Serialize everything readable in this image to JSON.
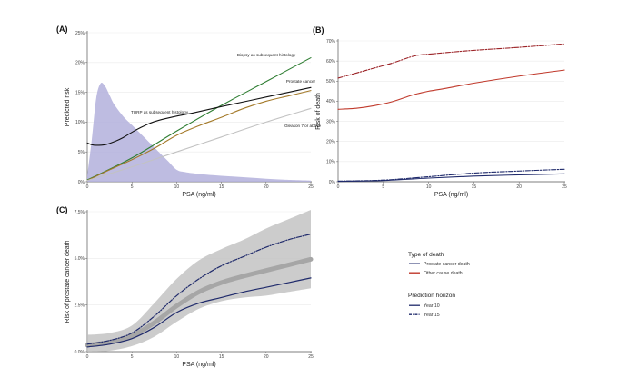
{
  "chart_data": [
    {
      "panel": "(A)",
      "type": "line",
      "xlabel": "PSA (ng/ml)",
      "ylabel": "Predicted risk",
      "xlim": [
        0,
        25
      ],
      "ylim": [
        0,
        25
      ],
      "xticks": [
        "0",
        "5",
        "10",
        "15",
        "20",
        "25"
      ],
      "yticks": [
        "0%",
        "5%",
        "10%",
        "15%",
        "20%",
        "25%"
      ],
      "density": {
        "name": "PSA distribution",
        "color": "#b3b0dc",
        "x": [
          0,
          0.5,
          1,
          1.5,
          2,
          2.5,
          3,
          4,
          5,
          6,
          7,
          8,
          9,
          10,
          11,
          12,
          14,
          16,
          18,
          20,
          22,
          25
        ],
        "y": [
          1.0,
          7,
          14,
          16.5,
          16,
          14.5,
          13,
          11,
          9.5,
          8,
          6.5,
          5,
          3.5,
          2,
          1.6,
          1.4,
          1.1,
          0.9,
          0.7,
          0.5,
          0.35,
          0.2
        ]
      },
      "series": [
        {
          "name": "Biopsy as subsequent histology",
          "color": "#2e7d32",
          "x": [
            0,
            5,
            10,
            15,
            20,
            25
          ],
          "y": [
            0.3,
            4,
            8.5,
            12.8,
            16.8,
            20.8
          ]
        },
        {
          "name": "Prostate cancer",
          "color": "#a47a2a",
          "x": [
            0,
            2.5,
            5,
            7.5,
            10,
            12.5,
            15,
            17.5,
            20,
            22.5,
            25
          ],
          "y": [
            0.2,
            2,
            3.7,
            5.6,
            7.8,
            9.4,
            10.8,
            12.3,
            13.5,
            14.4,
            15.3
          ]
        },
        {
          "name": "TURP as subsequent histology",
          "color": "#111111",
          "x": [
            0,
            0.5,
            1,
            2,
            3,
            4,
            5,
            6,
            7,
            8,
            10,
            12,
            15,
            20,
            25
          ],
          "y": [
            6.5,
            6.2,
            6.1,
            6.2,
            6.7,
            7.4,
            8.3,
            9.1,
            9.8,
            10.3,
            11.0,
            11.6,
            12.6,
            14.2,
            15.8
          ]
        },
        {
          "name": "Gleason 7 or above",
          "color": "#c2c2c2",
          "x": [
            0,
            5,
            10,
            15,
            20,
            25
          ],
          "y": [
            0.2,
            2.5,
            5,
            7.5,
            10,
            12.3
          ]
        }
      ],
      "annotations": [
        {
          "text": "Biopsy as subsequent histology",
          "series": 0
        },
        {
          "text": "Prostate cancer",
          "series": 1
        },
        {
          "text": "TURP as subsequent histology",
          "series": 2
        },
        {
          "text": "Gleason 7 or above",
          "series": 3
        }
      ]
    },
    {
      "panel": "(B)",
      "type": "line",
      "xlabel": "PSA (ng/ml)",
      "ylabel": "Risk of death",
      "xlim": [
        0,
        25
      ],
      "ylim": [
        0,
        70
      ],
      "xticks": [
        "0",
        "5",
        "10",
        "15",
        "20",
        "25"
      ],
      "yticks": [
        "0%",
        "10%",
        "20%",
        "30%",
        "40%",
        "50%",
        "60%",
        "70%"
      ],
      "series": [
        {
          "name": "Other cause death, Year 15",
          "color": "#9b2226",
          "dash": true,
          "x": [
            0,
            2,
            4,
            6,
            8,
            9,
            10,
            12,
            15,
            20,
            25
          ],
          "y": [
            51.5,
            54,
            56.5,
            59,
            62,
            63,
            63.4,
            64.2,
            65.3,
            66.8,
            68.5
          ]
        },
        {
          "name": "Other cause death, Year 10",
          "color": "#c0392b",
          "dash": false,
          "x": [
            0,
            2,
            4,
            6,
            8,
            9,
            10,
            12,
            15,
            20,
            25
          ],
          "y": [
            36,
            36.5,
            37.8,
            39.8,
            42.8,
            44,
            45,
            46.5,
            49,
            52.5,
            55.5
          ]
        },
        {
          "name": "Prostate cancer death, Year 15",
          "color": "#1f2a6b",
          "dash": true,
          "x": [
            0,
            5,
            10,
            15,
            20,
            25
          ],
          "y": [
            0.3,
            0.8,
            2.5,
            4.3,
            5.3,
            6.2
          ]
        },
        {
          "name": "Prostate cancer death, Year 10",
          "color": "#1f2a6b",
          "dash": false,
          "x": [
            0,
            5,
            10,
            15,
            20,
            25
          ],
          "y": [
            0.2,
            0.6,
            1.8,
            2.8,
            3.4,
            3.9
          ]
        }
      ]
    },
    {
      "panel": "(C)",
      "type": "line",
      "xlabel": "PSA (ng/ml)",
      "ylabel": "Risk of prostate cancer death",
      "xlim": [
        0,
        25
      ],
      "ylim": [
        0,
        7.5
      ],
      "xticks": [
        "0",
        "5",
        "10",
        "15",
        "20",
        "25"
      ],
      "yticks": [
        "0.0%",
        "2.5%",
        "5.0%",
        "7.5%"
      ],
      "band": {
        "x": [
          0,
          2.5,
          5,
          7.5,
          10,
          12.5,
          15,
          17.5,
          20,
          22.5,
          25
        ],
        "lower": [
          0,
          0.05,
          0.3,
          0.8,
          1.6,
          2.3,
          2.7,
          2.9,
          3.0,
          3.2,
          3.4
        ],
        "upper": [
          0.9,
          1.0,
          1.4,
          2.6,
          3.9,
          4.9,
          5.5,
          6.0,
          6.6,
          7.1,
          7.6
        ],
        "color": "#bfbfbf"
      },
      "series": [
        {
          "name": "Pooled estimate",
          "color": "#a6a6a6",
          "dash": false,
          "width": 5,
          "x": [
            0,
            2.5,
            5,
            7.5,
            10,
            12.5,
            15,
            17.5,
            20,
            22.5,
            25
          ],
          "y": [
            0.35,
            0.5,
            0.85,
            1.55,
            2.45,
            3.2,
            3.7,
            4.05,
            4.35,
            4.65,
            4.95
          ]
        },
        {
          "name": "Year 15",
          "color": "#1f2a6b",
          "dash": true,
          "width": 1.2,
          "x": [
            0,
            2.5,
            5,
            7.5,
            10,
            12.5,
            15,
            17.5,
            20,
            22.5,
            25
          ],
          "y": [
            0.4,
            0.6,
            1.0,
            1.9,
            3.0,
            3.9,
            4.6,
            5.1,
            5.6,
            6.0,
            6.3
          ]
        },
        {
          "name": "Year 10",
          "color": "#1f2a6b",
          "dash": false,
          "width": 1.2,
          "x": [
            0,
            2.5,
            5,
            7.5,
            10,
            12.5,
            15,
            17.5,
            20,
            22.5,
            25
          ],
          "y": [
            0.25,
            0.4,
            0.7,
            1.3,
            2.1,
            2.6,
            2.9,
            3.2,
            3.45,
            3.7,
            3.95
          ]
        }
      ]
    }
  ],
  "legend": {
    "type_title": "Type of death",
    "type_items": [
      {
        "label": "Prostate cancer death",
        "color": "#1f2a6b"
      },
      {
        "label": "Other cause death",
        "color": "#c0392b"
      }
    ],
    "horizon_title": "Prediction horizon",
    "horizon_items": [
      {
        "label": "Year 10",
        "color": "#1f2a6b",
        "dash": false
      },
      {
        "label": "Year 15",
        "color": "#1f2a6b",
        "dash": true
      }
    ]
  }
}
